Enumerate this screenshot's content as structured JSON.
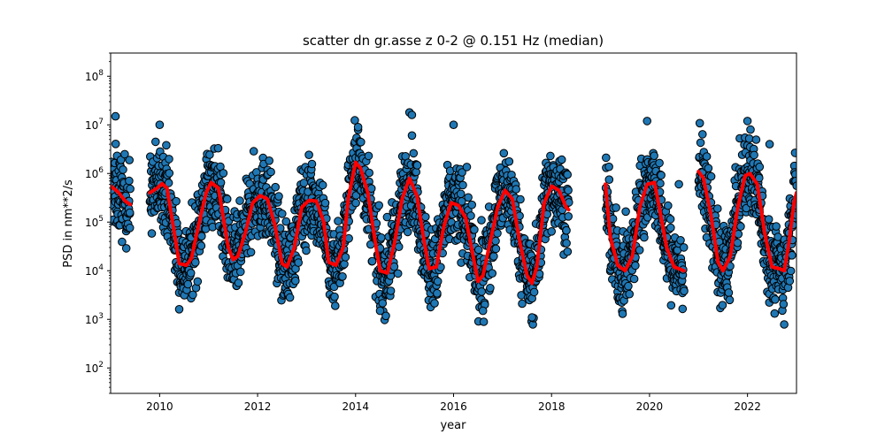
{
  "chart_data": {
    "type": "scatter",
    "title": "scatter dn gr.asse z 0-2 @ 0.151 Hz (median)",
    "xlabel": "year",
    "ylabel": "PSD in nm**2/s",
    "xlim": [
      2009.0,
      2023.0
    ],
    "ylim": [
      30,
      300000000
    ],
    "y_scale": "log",
    "grid": false,
    "x_ticks": [
      2010,
      2012,
      2014,
      2016,
      2018,
      2020,
      2022
    ],
    "y_ticks": [
      {
        "base": "10",
        "exp": "2",
        "value": 100
      },
      {
        "base": "10",
        "exp": "3",
        "value": 1000
      },
      {
        "base": "10",
        "exp": "4",
        "value": 10000
      },
      {
        "base": "10",
        "exp": "5",
        "value": 100000
      },
      {
        "base": "10",
        "exp": "6",
        "value": 1000000
      },
      {
        "base": "10",
        "exp": "7",
        "value": 10000000
      },
      {
        "base": "10",
        "exp": "8",
        "value": 100000000
      }
    ],
    "segments": [
      [
        2009.0,
        2009.4
      ],
      [
        2009.8,
        2018.35
      ],
      [
        2019.1,
        2020.7
      ],
      [
        2021.0,
        2023.0
      ]
    ],
    "median_points": [
      [
        2009.0,
        550000
      ],
      [
        2009.15,
        420000
      ],
      [
        2009.3,
        270000
      ],
      [
        2009.4,
        230000
      ],
      [
        2009.8,
        400000
      ],
      [
        2009.95,
        500000
      ],
      [
        2010.05,
        620000
      ],
      [
        2010.15,
        500000
      ],
      [
        2010.3,
        60000
      ],
      [
        2010.4,
        14000
      ],
      [
        2010.55,
        13000
      ],
      [
        2010.65,
        18000
      ],
      [
        2010.8,
        90000
      ],
      [
        2010.95,
        400000
      ],
      [
        2011.05,
        650000
      ],
      [
        2011.2,
        500000
      ],
      [
        2011.4,
        30000
      ],
      [
        2011.5,
        17000
      ],
      [
        2011.6,
        20000
      ],
      [
        2011.75,
        60000
      ],
      [
        2011.9,
        250000
      ],
      [
        2012.05,
        350000
      ],
      [
        2012.2,
        300000
      ],
      [
        2012.35,
        90000
      ],
      [
        2012.5,
        14000
      ],
      [
        2012.6,
        12000
      ],
      [
        2012.75,
        30000
      ],
      [
        2012.9,
        200000
      ],
      [
        2013.05,
        280000
      ],
      [
        2013.2,
        270000
      ],
      [
        2013.35,
        100000
      ],
      [
        2013.45,
        15000
      ],
      [
        2013.6,
        13000
      ],
      [
        2013.75,
        30000
      ],
      [
        2013.85,
        300000
      ],
      [
        2014.0,
        1700000
      ],
      [
        2014.1,
        1300000
      ],
      [
        2014.25,
        400000
      ],
      [
        2014.4,
        40000
      ],
      [
        2014.5,
        10000
      ],
      [
        2014.65,
        9000
      ],
      [
        2014.8,
        40000
      ],
      [
        2014.95,
        300000
      ],
      [
        2015.1,
        800000
      ],
      [
        2015.25,
        350000
      ],
      [
        2015.4,
        40000
      ],
      [
        2015.5,
        11000
      ],
      [
        2015.65,
        12000
      ],
      [
        2015.8,
        80000
      ],
      [
        2015.95,
        250000
      ],
      [
        2016.1,
        220000
      ],
      [
        2016.25,
        120000
      ],
      [
        2016.4,
        20000
      ],
      [
        2016.5,
        6000
      ],
      [
        2016.6,
        8000
      ],
      [
        2016.75,
        40000
      ],
      [
        2016.9,
        200000
      ],
      [
        2017.05,
        450000
      ],
      [
        2017.2,
        300000
      ],
      [
        2017.35,
        40000
      ],
      [
        2017.5,
        8000
      ],
      [
        2017.6,
        5500
      ],
      [
        2017.7,
        12000
      ],
      [
        2017.85,
        250000
      ],
      [
        2018.0,
        550000
      ],
      [
        2018.15,
        450000
      ],
      [
        2018.3,
        200000
      ],
      [
        2018.35,
        180000
      ],
      [
        2019.1,
        600000
      ],
      [
        2019.2,
        50000
      ],
      [
        2019.35,
        13000
      ],
      [
        2019.5,
        10000
      ],
      [
        2019.65,
        20000
      ],
      [
        2019.8,
        200000
      ],
      [
        2019.95,
        600000
      ],
      [
        2020.1,
        650000
      ],
      [
        2020.2,
        200000
      ],
      [
        2020.35,
        30000
      ],
      [
        2020.5,
        12000
      ],
      [
        2020.7,
        10000
      ],
      [
        2021.0,
        1100000
      ],
      [
        2021.1,
        800000
      ],
      [
        2021.25,
        150000
      ],
      [
        2021.4,
        15000
      ],
      [
        2021.5,
        10000
      ],
      [
        2021.65,
        20000
      ],
      [
        2021.8,
        200000
      ],
      [
        2021.95,
        900000
      ],
      [
        2022.05,
        1000000
      ],
      [
        2022.2,
        600000
      ],
      [
        2022.35,
        60000
      ],
      [
        2022.5,
        12000
      ],
      [
        2022.65,
        11000
      ],
      [
        2022.75,
        10000
      ],
      [
        2022.85,
        40000
      ],
      [
        2022.95,
        250000
      ],
      [
        2023.0,
        400000
      ]
    ],
    "scatter_spread_decades": 0.75,
    "outliers": [
      [
        2009.1,
        15000000
      ],
      [
        2015.1,
        18000000
      ],
      [
        2015.15,
        16000000
      ],
      [
        2022.0,
        12000000
      ],
      [
        2019.95,
        12000000
      ],
      [
        2016.0,
        10000000
      ],
      [
        2014.05,
        9000000
      ],
      [
        2010.0,
        10000000
      ],
      [
        2020.6,
        600000
      ],
      [
        2022.45,
        4000000
      ],
      [
        2014.5,
        1500
      ],
      [
        2017.6,
        1100
      ],
      [
        2019.45,
        1300
      ],
      [
        2016.6,
        1500
      ]
    ],
    "series": [
      {
        "name": "",
        "kind": "scatter",
        "color": "#1f77b4",
        "edge_color": "#000000"
      },
      {
        "name": "",
        "kind": "line",
        "color": "#ff0000"
      }
    ]
  }
}
